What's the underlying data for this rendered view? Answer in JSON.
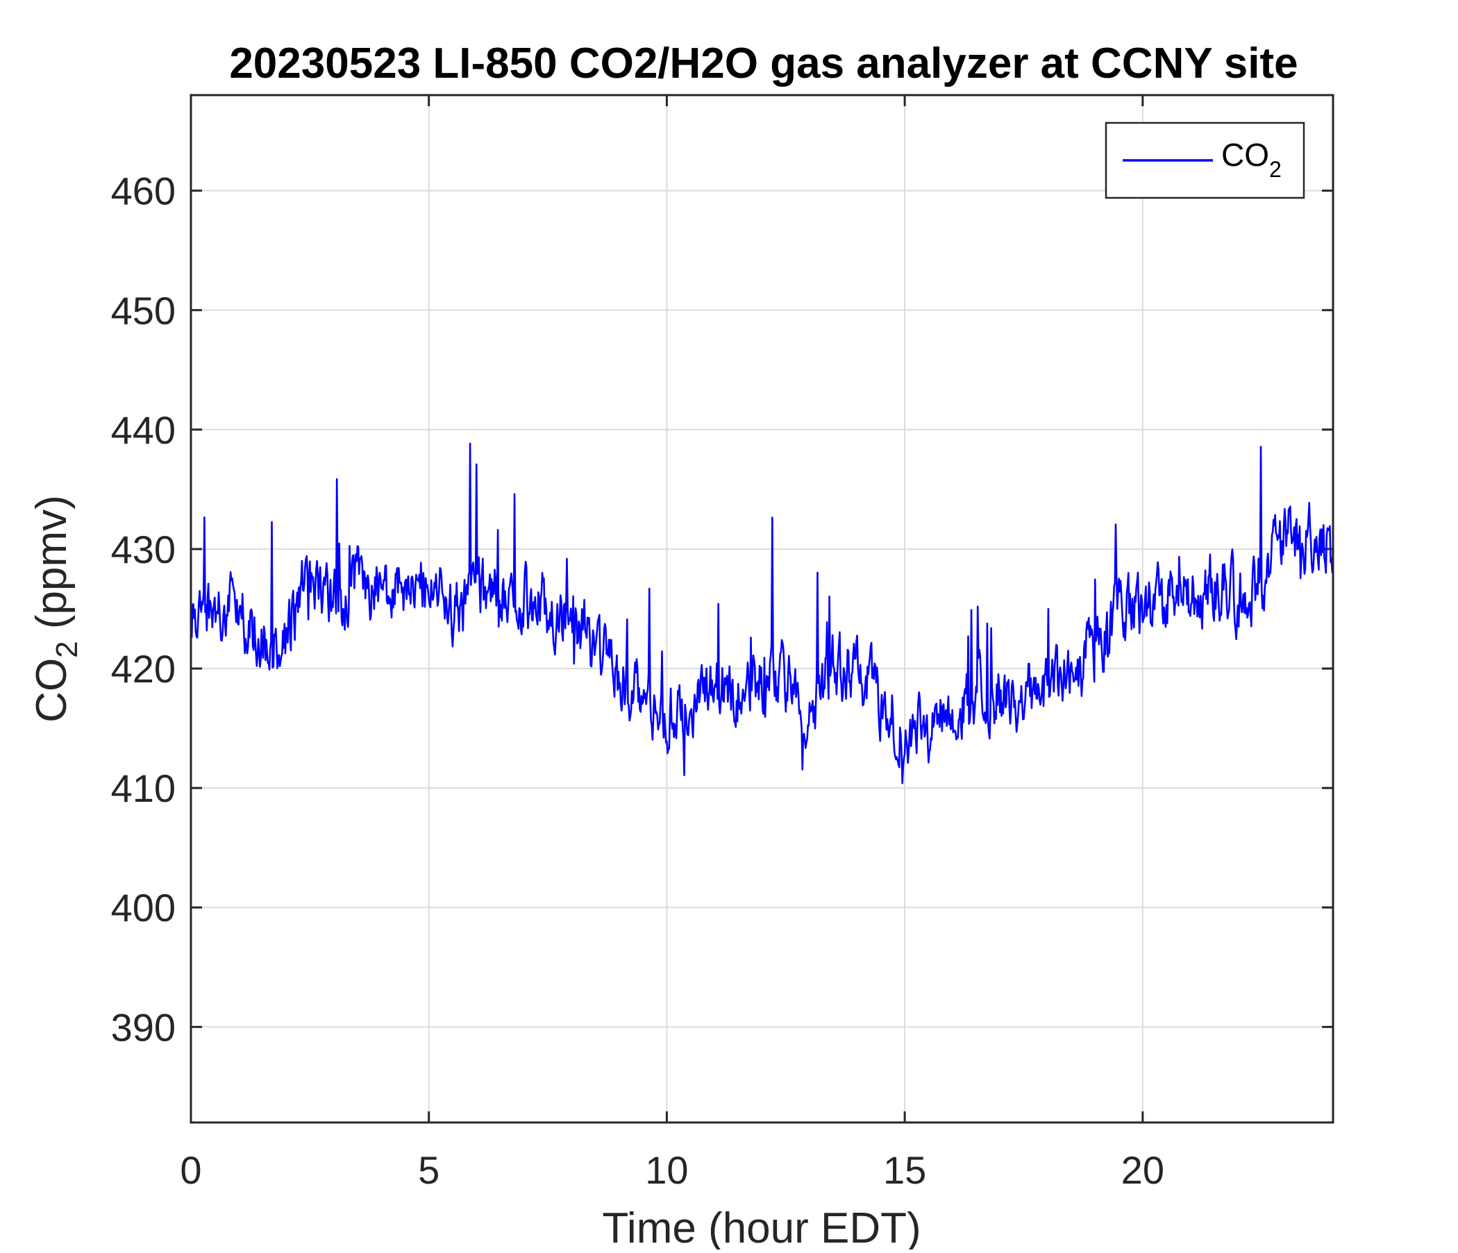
{
  "chart_data": {
    "type": "line",
    "title": "20230523 LI-850 CO2/H2O gas analyzer at CCNY site",
    "xlabel": {
      "text": "Time (hour EDT)"
    },
    "ylabel": {
      "base": "CO",
      "sub": "2",
      "rest": " (ppmv)"
    },
    "xlim": [
      0,
      24
    ],
    "ylim": [
      382,
      468
    ],
    "xticks": [
      0,
      5,
      10,
      15,
      20
    ],
    "yticks": [
      390,
      400,
      410,
      420,
      430,
      440,
      450,
      460
    ],
    "grid": true,
    "legend_position": "top-right",
    "colors": {
      "line": "#0000ff",
      "axis": "#262626",
      "grid": "#dcdcdc"
    },
    "series": [
      {
        "name": "CO2",
        "name_display": {
          "base": "CO",
          "sub": "2"
        },
        "x": [
          0,
          0.5,
          1,
          1.5,
          2,
          2.5,
          3,
          3.5,
          4,
          4.5,
          5,
          5.5,
          6,
          6.5,
          7,
          7.5,
          8,
          8.5,
          9,
          9.5,
          10,
          10.5,
          11,
          11.5,
          12,
          12.5,
          13,
          13.5,
          14,
          14.5,
          15,
          15.5,
          16,
          16.5,
          17,
          17.5,
          18,
          18.5,
          19,
          19.5,
          20,
          20.5,
          21,
          21.5,
          22,
          22.5,
          23,
          23.5,
          24
        ],
        "values": [
          424,
          425,
          425,
          422,
          423,
          428,
          425,
          427,
          427,
          426,
          427,
          425,
          426,
          426,
          426,
          425,
          424,
          422,
          419,
          418,
          416,
          417,
          418,
          418,
          419,
          419,
          417,
          420,
          420,
          417,
          415,
          415,
          416,
          418,
          418,
          418,
          418,
          419,
          421,
          425,
          425,
          426,
          426,
          427,
          426,
          427,
          431,
          431,
          430
        ],
        "noise_amplitude": 2.2,
        "spike_max": 12
      }
    ]
  }
}
